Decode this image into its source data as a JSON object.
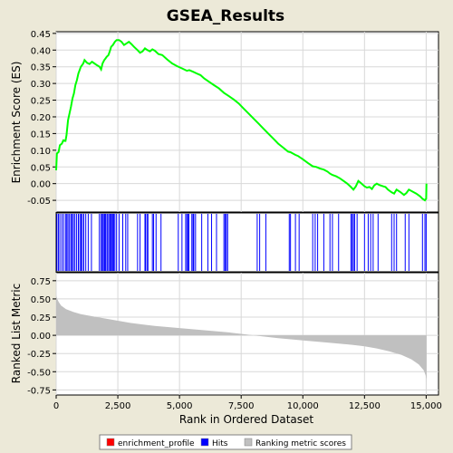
{
  "chart_data": [
    {
      "type": "line",
      "title": "GSEA_Results",
      "ylabel": "Enrichment Score (ES)",
      "xlim": [
        0,
        15500
      ],
      "ylim": [
        -0.085,
        0.455
      ],
      "yticks": [
        -0.05,
        0.0,
        0.05,
        0.1,
        0.15,
        0.2,
        0.25,
        0.3,
        0.35,
        0.4,
        0.45
      ],
      "yticklabels": [
        "-0.05",
        "0.00",
        "0.05",
        "0.10",
        "0.15",
        "0.20",
        "0.25",
        "0.30",
        "0.35",
        "0.40",
        "0.45"
      ],
      "grid": true,
      "series": [
        {
          "name": "enrichment_profile",
          "color": "#FF0000",
          "points": [
            [
              0,
              0.04
            ],
            [
              30,
              0.09
            ],
            [
              100,
              0.095
            ],
            [
              150,
              0.115
            ],
            [
              230,
              0.12
            ],
            [
              290,
              0.13
            ],
            [
              380,
              0.128
            ],
            [
              420,
              0.145
            ],
            [
              480,
              0.19
            ],
            [
              540,
              0.21
            ],
            [
              600,
              0.23
            ],
            [
              660,
              0.255
            ],
            [
              720,
              0.27
            ],
            [
              780,
              0.295
            ],
            [
              840,
              0.31
            ],
            [
              900,
              0.33
            ],
            [
              950,
              0.34
            ],
            [
              1000,
              0.35
            ],
            [
              1050,
              0.355
            ],
            [
              1100,
              0.36
            ],
            [
              1150,
              0.37
            ],
            [
              1250,
              0.362
            ],
            [
              1350,
              0.358
            ],
            [
              1450,
              0.365
            ],
            [
              1550,
              0.36
            ],
            [
              1650,
              0.355
            ],
            [
              1760,
              0.35
            ],
            [
              1820,
              0.342
            ],
            [
              1880,
              0.36
            ],
            [
              1950,
              0.37
            ],
            [
              2000,
              0.375
            ],
            [
              2050,
              0.38
            ],
            [
              2120,
              0.385
            ],
            [
              2180,
              0.398
            ],
            [
              2230,
              0.41
            ],
            [
              2300,
              0.415
            ],
            [
              2380,
              0.425
            ],
            [
              2450,
              0.43
            ],
            [
              2550,
              0.43
            ],
            [
              2650,
              0.425
            ],
            [
              2750,
              0.415
            ],
            [
              2850,
              0.42
            ],
            [
              2950,
              0.425
            ],
            [
              3050,
              0.418
            ],
            [
              3150,
              0.41
            ],
            [
              3300,
              0.4
            ],
            [
              3400,
              0.392
            ],
            [
              3500,
              0.396
            ],
            [
              3600,
              0.405
            ],
            [
              3700,
              0.4
            ],
            [
              3800,
              0.396
            ],
            [
              3900,
              0.402
            ],
            [
              4000,
              0.398
            ],
            [
              4150,
              0.388
            ],
            [
              4300,
              0.385
            ],
            [
              4500,
              0.372
            ],
            [
              4700,
              0.36
            ],
            [
              4900,
              0.352
            ],
            [
              5100,
              0.345
            ],
            [
              5300,
              0.338
            ],
            [
              5400,
              0.34
            ],
            [
              5550,
              0.335
            ],
            [
              5700,
              0.33
            ],
            [
              5850,
              0.325
            ],
            [
              6000,
              0.315
            ],
            [
              6200,
              0.305
            ],
            [
              6400,
              0.295
            ],
            [
              6600,
              0.285
            ],
            [
              6800,
              0.272
            ],
            [
              7000,
              0.262
            ],
            [
              7200,
              0.252
            ],
            [
              7400,
              0.24
            ],
            [
              7600,
              0.225
            ],
            [
              7800,
              0.21
            ],
            [
              8000,
              0.195
            ],
            [
              8200,
              0.18
            ],
            [
              8400,
              0.165
            ],
            [
              8600,
              0.15
            ],
            [
              8800,
              0.135
            ],
            [
              9000,
              0.12
            ],
            [
              9200,
              0.108
            ],
            [
              9400,
              0.096
            ],
            [
              9500,
              0.094
            ],
            [
              9600,
              0.09
            ],
            [
              9700,
              0.086
            ],
            [
              9800,
              0.083
            ],
            [
              9900,
              0.078
            ],
            [
              10000,
              0.073
            ],
            [
              10200,
              0.062
            ],
            [
              10400,
              0.052
            ],
            [
              10550,
              0.05
            ],
            [
              10700,
              0.045
            ],
            [
              10850,
              0.042
            ],
            [
              11000,
              0.036
            ],
            [
              11100,
              0.03
            ],
            [
              11200,
              0.026
            ],
            [
              11350,
              0.022
            ],
            [
              11500,
              0.016
            ],
            [
              11650,
              0.008
            ],
            [
              11800,
              0.0
            ],
            [
              11950,
              -0.01
            ],
            [
              12050,
              -0.018
            ],
            [
              12150,
              -0.008
            ],
            [
              12250,
              0.008
            ],
            [
              12350,
              0.002
            ],
            [
              12500,
              -0.008
            ],
            [
              12600,
              -0.012
            ],
            [
              12700,
              -0.01
            ],
            [
              12800,
              -0.016
            ],
            [
              12900,
              -0.005
            ],
            [
              13000,
              0.0
            ],
            [
              13100,
              -0.004
            ],
            [
              13250,
              -0.008
            ],
            [
              13350,
              -0.01
            ],
            [
              13450,
              -0.018
            ],
            [
              13600,
              -0.026
            ],
            [
              13700,
              -0.03
            ],
            [
              13800,
              -0.018
            ],
            [
              13950,
              -0.025
            ],
            [
              14100,
              -0.034
            ],
            [
              14200,
              -0.028
            ],
            [
              14300,
              -0.018
            ],
            [
              14450,
              -0.024
            ],
            [
              14600,
              -0.03
            ],
            [
              14750,
              -0.038
            ],
            [
              14850,
              -0.045
            ],
            [
              14950,
              -0.05
            ],
            [
              15000,
              -0.045
            ],
            [
              15010,
              0.0
            ]
          ]
        }
      ]
    },
    {
      "type": "scatter",
      "series": [
        {
          "name": "Hits",
          "color": "#0000FF",
          "x": [
            30,
            90,
            150,
            230,
            300,
            380,
            430,
            480,
            540,
            600,
            650,
            700,
            760,
            830,
            900,
            960,
            1010,
            1060,
            1120,
            1200,
            1300,
            1430,
            1750,
            1820,
            1870,
            1900,
            1950,
            1980,
            2020,
            2080,
            2130,
            2180,
            2210,
            2250,
            2290,
            2330,
            2380,
            2450,
            2550,
            2700,
            2820,
            2900,
            3300,
            3400,
            3600,
            3620,
            3680,
            3720,
            3900,
            3950,
            4050,
            4250,
            4950,
            5100,
            5250,
            5300,
            5350,
            5380,
            5500,
            5550,
            5580,
            5650,
            5900,
            6150,
            6300,
            6500,
            6800,
            6850,
            6900,
            6950,
            8150,
            8250,
            8500,
            9450,
            9500,
            9700,
            9850,
            10400,
            10500,
            10600,
            10850,
            11100,
            11200,
            11450,
            11950,
            12000,
            12050,
            12100,
            12200,
            12500,
            12650,
            12750,
            12850,
            13050,
            13600,
            13700,
            13800,
            14150,
            14300,
            14850,
            14950,
            15000
          ]
        }
      ]
    },
    {
      "type": "area",
      "ylabel": "Ranked List Metric",
      "xlabel": "Rank in Ordered Dataset",
      "xlim": [
        0,
        15500
      ],
      "ylim": [
        -0.82,
        0.86
      ],
      "xticks": [
        0,
        2500,
        5000,
        7500,
        10000,
        12500,
        15000
      ],
      "xticklabels": [
        "0",
        "2,500",
        "5,000",
        "7,500",
        "10,000",
        "12,500",
        "15,000"
      ],
      "yticks": [
        -0.75,
        -0.5,
        -0.25,
        0.0,
        0.25,
        0.5,
        0.75
      ],
      "yticklabels": [
        "-0.75",
        "-0.50",
        "-0.25",
        "0.00",
        "0.25",
        "0.50",
        "0.75"
      ],
      "grid": true,
      "series": [
        {
          "name": "Ranking metric scores",
          "color": "#C0C0C0",
          "points": [
            [
              0,
              0.55
            ],
            [
              40,
              0.5
            ],
            [
              100,
              0.46
            ],
            [
              200,
              0.41
            ],
            [
              400,
              0.36
            ],
            [
              700,
              0.32
            ],
            [
              1000,
              0.29
            ],
            [
              1500,
              0.26
            ],
            [
              2000,
              0.23
            ],
            [
              2500,
              0.2
            ],
            [
              3000,
              0.17
            ],
            [
              3500,
              0.15
            ],
            [
              4000,
              0.13
            ],
            [
              5000,
              0.1
            ],
            [
              6000,
              0.07
            ],
            [
              7000,
              0.04
            ],
            [
              7500,
              0.02
            ],
            [
              8000,
              0.0
            ],
            [
              9000,
              -0.04
            ],
            [
              10000,
              -0.07
            ],
            [
              11000,
              -0.1
            ],
            [
              12000,
              -0.13
            ],
            [
              12500,
              -0.15
            ],
            [
              13000,
              -0.18
            ],
            [
              13500,
              -0.22
            ],
            [
              14000,
              -0.27
            ],
            [
              14400,
              -0.33
            ],
            [
              14700,
              -0.4
            ],
            [
              14900,
              -0.48
            ],
            [
              14980,
              -0.55
            ],
            [
              15010,
              -0.6
            ],
            [
              15020,
              -0.78
            ]
          ]
        }
      ]
    }
  ],
  "legend": {
    "position": "bottom",
    "items": [
      {
        "label": "enrichment_profile",
        "color": "#FF0000"
      },
      {
        "label": "Hits",
        "color": "#0000FF"
      },
      {
        "label": "Ranking metric scores",
        "color": "#C0C0C0"
      }
    ]
  }
}
